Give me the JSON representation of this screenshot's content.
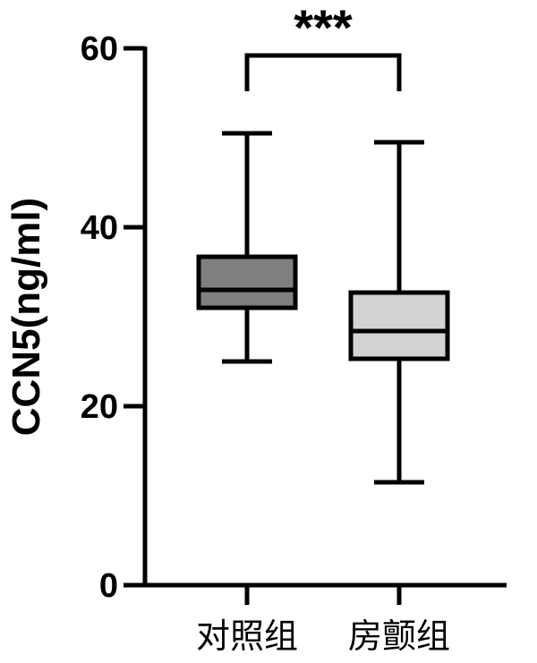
{
  "chart_data": {
    "type": "box",
    "title": "",
    "xlabel": "",
    "ylabel": "CCN5(ng/ml)",
    "ylim": [
      0,
      60
    ],
    "yticks": [
      0,
      20,
      40,
      60
    ],
    "grid": false,
    "categories": [
      "对照组",
      "房颤组"
    ],
    "series": [
      {
        "category": "对照组",
        "min": 25,
        "q1": 31,
        "median": 33,
        "q3": 36.7,
        "max": 50.5,
        "color": "#7f7f7f"
      },
      {
        "category": "房颤组",
        "min": 11.5,
        "q1": 25.3,
        "median": 28.4,
        "q3": 32.7,
        "max": 49.5,
        "color": "#d3d3d3"
      }
    ],
    "significance": {
      "label": "***",
      "between": [
        "对照组",
        "房颤组"
      ]
    }
  }
}
